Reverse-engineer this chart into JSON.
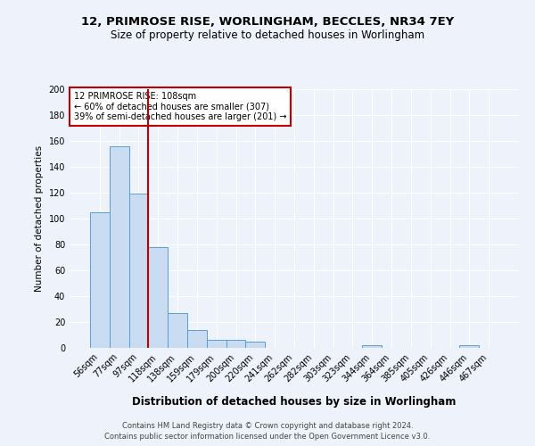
{
  "title": "12, PRIMROSE RISE, WORLINGHAM, BECCLES, NR34 7EY",
  "subtitle": "Size of property relative to detached houses in Worlingham",
  "xlabel": "Distribution of detached houses by size in Worlingham",
  "ylabel": "Number of detached properties",
  "categories": [
    "56sqm",
    "77sqm",
    "97sqm",
    "118sqm",
    "138sqm",
    "159sqm",
    "179sqm",
    "200sqm",
    "220sqm",
    "241sqm",
    "262sqm",
    "282sqm",
    "303sqm",
    "323sqm",
    "344sqm",
    "364sqm",
    "385sqm",
    "405sqm",
    "426sqm",
    "446sqm",
    "467sqm"
  ],
  "values": [
    105,
    156,
    119,
    78,
    27,
    14,
    6,
    6,
    5,
    0,
    0,
    0,
    0,
    0,
    2,
    0,
    0,
    0,
    0,
    2,
    0
  ],
  "bar_color": "#c9dcf2",
  "bar_edge_color": "#5b9bd5",
  "red_line_x": 2.5,
  "red_line_color": "#c00000",
  "annotation_line1": "12 PRIMROSE RISE: 108sqm",
  "annotation_line2": "← 60% of detached houses are smaller (307)",
  "annotation_line3": "39% of semi-detached houses are larger (201) →",
  "annotation_box_color": "#ffffff",
  "annotation_box_edge": "#c00000",
  "ylim": [
    0,
    200
  ],
  "yticks": [
    0,
    20,
    40,
    60,
    80,
    100,
    120,
    140,
    160,
    180,
    200
  ],
  "background_color": "#eef2fb",
  "grid_color": "#ffffff",
  "footer_line1": "Contains HM Land Registry data © Crown copyright and database right 2024.",
  "footer_line2": "Contains public sector information licensed under the Open Government Licence v3.0."
}
